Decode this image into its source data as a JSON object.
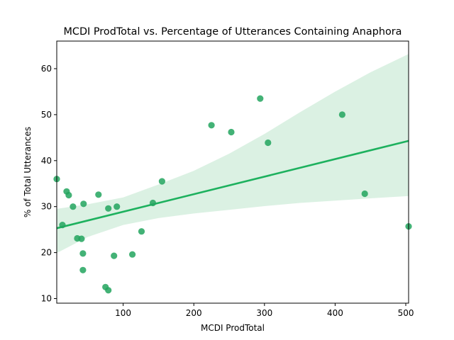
{
  "chart_data": {
    "type": "scatter",
    "title": "MCDI ProdTotal vs. Percentage of Utterances Containing Anaphora",
    "xlabel": "MCDI ProdTotal",
    "ylabel": "% of Total Utterances",
    "xlim": [
      6,
      504
    ],
    "ylim": [
      9,
      66
    ],
    "x_ticks": [
      100,
      200,
      300,
      400,
      500
    ],
    "y_ticks": [
      10,
      20,
      30,
      40,
      50,
      60
    ],
    "grid": false,
    "colors": {
      "points": "#22a55e",
      "line": "#1db15e",
      "band": "#b8e3c8"
    },
    "points": [
      {
        "x": 6,
        "y": 36.0
      },
      {
        "x": 14,
        "y": 26.0
      },
      {
        "x": 20,
        "y": 33.3
      },
      {
        "x": 23,
        "y": 32.5
      },
      {
        "x": 29,
        "y": 30.0
      },
      {
        "x": 35,
        "y": 23.1
      },
      {
        "x": 41,
        "y": 23.0
      },
      {
        "x": 43,
        "y": 19.8
      },
      {
        "x": 43,
        "y": 16.2
      },
      {
        "x": 44,
        "y": 30.6
      },
      {
        "x": 65,
        "y": 32.6
      },
      {
        "x": 75,
        "y": 12.5
      },
      {
        "x": 79,
        "y": 11.8
      },
      {
        "x": 79,
        "y": 29.6
      },
      {
        "x": 87,
        "y": 19.3
      },
      {
        "x": 91,
        "y": 30.0
      },
      {
        "x": 113,
        "y": 19.6
      },
      {
        "x": 126,
        "y": 24.6
      },
      {
        "x": 142,
        "y": 30.8
      },
      {
        "x": 155,
        "y": 35.5
      },
      {
        "x": 225,
        "y": 47.7
      },
      {
        "x": 253,
        "y": 46.2
      },
      {
        "x": 294,
        "y": 53.5
      },
      {
        "x": 305,
        "y": 43.9
      },
      {
        "x": 410,
        "y": 50.0
      },
      {
        "x": 442,
        "y": 32.8
      },
      {
        "x": 504,
        "y": 25.7
      }
    ],
    "regression": {
      "x": [
        6,
        504
      ],
      "y": [
        25.3,
        44.3
      ]
    },
    "confidence_band": {
      "x": [
        6,
        50,
        100,
        150,
        200,
        250,
        300,
        350,
        400,
        450,
        504
      ],
      "lower": [
        19.9,
        23.4,
        26.0,
        27.5,
        28.5,
        29.3,
        30.1,
        30.8,
        31.3,
        31.8,
        32.3
      ],
      "upper": [
        29.5,
        30.5,
        32.0,
        34.8,
        37.8,
        41.5,
        45.8,
        50.5,
        55.0,
        59.2,
        63.2
      ]
    }
  }
}
